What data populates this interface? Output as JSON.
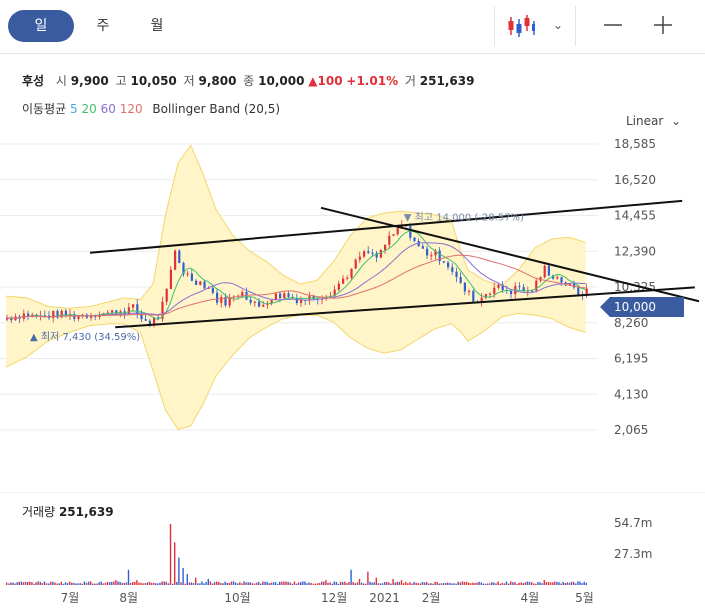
{
  "period_tabs": [
    {
      "label": "일",
      "active": true
    },
    {
      "label": "주",
      "active": false
    },
    {
      "label": "월",
      "active": false
    }
  ],
  "toolbar": {
    "chart_type_icon": "candlestick-icon",
    "dropdown_icon": "chevron-down-icon",
    "zoom_out_icon": "minus-icon",
    "zoom_in_icon": "plus-icon"
  },
  "quote": {
    "name": "후성",
    "open_label": "시",
    "open": "9,900",
    "high_label": "고",
    "high": "10,050",
    "low_label": "저",
    "low": "9,800",
    "close_label": "종",
    "close": "10,000",
    "change": "▲100",
    "change_pct": "+1.01%",
    "volume_label": "거",
    "volume": "251,639"
  },
  "indicators": {
    "ma_label": "이동평균",
    "ma_periods": [
      "5",
      "20",
      "60",
      "120"
    ],
    "bollinger_label": "Bollinger Band (20,5)"
  },
  "scale": {
    "label": "Linear"
  },
  "current_price_tag": "10,000",
  "annotations": {
    "high": "▼ 최고 14,000 (-28.57%)",
    "low": "▲ 최저 7,430 (34.59%)"
  },
  "volume_panel": {
    "title": "거래량",
    "value": "251,639",
    "ticks": [
      "54.7m",
      "27.3m"
    ]
  },
  "colors": {
    "up": "#e0303a",
    "down": "#3060d0",
    "band_fill": "#fff5c8",
    "band_line": "#f3d66a",
    "ma5": "#4aa8d8",
    "ma20": "#40c070",
    "ma60": "#8a6fd0",
    "ma120": "#e07070",
    "accent": "#3a5ba0"
  },
  "chart_data": {
    "type": "candlestick",
    "y_ticks": [
      18585,
      16520,
      14455,
      12390,
      10325,
      8260,
      6195,
      4130,
      2065
    ],
    "ylim": [
      2065,
      18585
    ],
    "x_ticks": [
      "7월",
      "8월",
      "10월",
      "12월",
      "2021",
      "2월",
      "4월",
      "5월"
    ],
    "price_path": [
      [
        0,
        8550
      ],
      [
        4,
        8650
      ],
      [
        8,
        8750
      ],
      [
        12,
        8650
      ],
      [
        16,
        8600
      ],
      [
        20,
        8700
      ],
      [
        24,
        8750
      ],
      [
        28,
        8700
      ],
      [
        32,
        8650
      ],
      [
        36,
        8700
      ],
      [
        40,
        8750
      ],
      [
        44,
        8850
      ],
      [
        48,
        8800
      ],
      [
        52,
        8900
      ],
      [
        56,
        9000
      ],
      [
        60,
        9100
      ],
      [
        64,
        8500
      ],
      [
        68,
        8300
      ],
      [
        72,
        8600
      ],
      [
        76,
        10000
      ],
      [
        80,
        12400
      ],
      [
        84,
        11200
      ],
      [
        88,
        10800
      ],
      [
        92,
        10600
      ],
      [
        96,
        10300
      ],
      [
        100,
        9600
      ],
      [
        104,
        9500
      ],
      [
        108,
        9700
      ],
      [
        112,
        10200
      ],
      [
        116,
        9400
      ],
      [
        120,
        9200
      ],
      [
        124,
        9600
      ],
      [
        128,
        9800
      ],
      [
        132,
        9900
      ],
      [
        136,
        9700
      ],
      [
        140,
        9600
      ],
      [
        144,
        9700
      ],
      [
        148,
        9800
      ],
      [
        152,
        9900
      ],
      [
        156,
        10200
      ],
      [
        160,
        10800
      ],
      [
        164,
        11300
      ],
      [
        168,
        12100
      ],
      [
        172,
        12300
      ],
      [
        176,
        12000
      ],
      [
        180,
        12800
      ],
      [
        184,
        13300
      ],
      [
        188,
        13900
      ],
      [
        192,
        13400
      ],
      [
        196,
        12600
      ],
      [
        200,
        12300
      ],
      [
        204,
        12200
      ],
      [
        208,
        11900
      ],
      [
        212,
        11300
      ],
      [
        216,
        10400
      ],
      [
        220,
        9900
      ],
      [
        224,
        9500
      ],
      [
        228,
        10000
      ],
      [
        232,
        10300
      ],
      [
        236,
        10200
      ],
      [
        240,
        10100
      ],
      [
        244,
        10300
      ],
      [
        248,
        10000
      ],
      [
        252,
        10500
      ],
      [
        256,
        11400
      ],
      [
        260,
        11000
      ],
      [
        264,
        10700
      ],
      [
        268,
        10300
      ],
      [
        272,
        10000
      ],
      [
        276,
        10000
      ]
    ],
    "volumes": [
      [
        16,
        0.05
      ],
      [
        40,
        0.06
      ],
      [
        52,
        0.08
      ],
      [
        58,
        0.25
      ],
      [
        62,
        0.08
      ],
      [
        78,
        1.0
      ],
      [
        80,
        0.7
      ],
      [
        82,
        0.45
      ],
      [
        84,
        0.28
      ],
      [
        86,
        0.18
      ],
      [
        90,
        0.12
      ],
      [
        96,
        0.1
      ],
      [
        108,
        0.06
      ],
      [
        120,
        0.05
      ],
      [
        152,
        0.08
      ],
      [
        164,
        0.25
      ],
      [
        168,
        0.1
      ],
      [
        172,
        0.22
      ],
      [
        176,
        0.12
      ],
      [
        184,
        0.1
      ],
      [
        188,
        0.08
      ],
      [
        200,
        0.05
      ],
      [
        220,
        0.04
      ],
      [
        240,
        0.06
      ],
      [
        256,
        0.08
      ],
      [
        262,
        0.05
      ],
      [
        272,
        0.06
      ]
    ],
    "bollinger_upper": [
      [
        0,
        9800
      ],
      [
        10,
        9700
      ],
      [
        20,
        9200
      ],
      [
        30,
        9100
      ],
      [
        40,
        9200
      ],
      [
        50,
        9500
      ],
      [
        56,
        9700
      ],
      [
        64,
        9600
      ],
      [
        70,
        10500
      ],
      [
        76,
        14500
      ],
      [
        82,
        17500
      ],
      [
        88,
        18500
      ],
      [
        94,
        16800
      ],
      [
        100,
        14800
      ],
      [
        108,
        13300
      ],
      [
        116,
        12400
      ],
      [
        124,
        11800
      ],
      [
        132,
        11000
      ],
      [
        140,
        10500
      ],
      [
        148,
        10700
      ],
      [
        156,
        11800
      ],
      [
        164,
        13300
      ],
      [
        172,
        14300
      ],
      [
        180,
        14600
      ],
      [
        188,
        14700
      ],
      [
        196,
        14600
      ],
      [
        204,
        14500
      ],
      [
        212,
        14200
      ],
      [
        216,
        12600
      ],
      [
        220,
        11300
      ],
      [
        228,
        10700
      ],
      [
        236,
        10400
      ],
      [
        244,
        11300
      ],
      [
        252,
        12600
      ],
      [
        260,
        13100
      ],
      [
        268,
        13200
      ],
      [
        276,
        12900
      ]
    ],
    "bollinger_lower": [
      [
        0,
        5700
      ],
      [
        10,
        6300
      ],
      [
        20,
        7200
      ],
      [
        30,
        7700
      ],
      [
        40,
        8100
      ],
      [
        50,
        8200
      ],
      [
        56,
        8200
      ],
      [
        64,
        7700
      ],
      [
        70,
        5500
      ],
      [
        76,
        3200
      ],
      [
        82,
        2100
      ],
      [
        88,
        2300
      ],
      [
        94,
        3600
      ],
      [
        100,
        5200
      ],
      [
        108,
        6400
      ],
      [
        116,
        7400
      ],
      [
        124,
        8000
      ],
      [
        132,
        8500
      ],
      [
        140,
        8700
      ],
      [
        148,
        8700
      ],
      [
        156,
        8300
      ],
      [
        164,
        7400
      ],
      [
        172,
        6800
      ],
      [
        180,
        6500
      ],
      [
        188,
        6700
      ],
      [
        196,
        7300
      ],
      [
        204,
        7900
      ],
      [
        212,
        8200
      ],
      [
        216,
        7800
      ],
      [
        220,
        7200
      ],
      [
        228,
        7800
      ],
      [
        236,
        8600
      ],
      [
        244,
        8800
      ],
      [
        252,
        8700
      ],
      [
        260,
        8500
      ],
      [
        268,
        8000
      ],
      [
        276,
        7700
      ]
    ],
    "trendlines": [
      [
        [
          40,
          12300
        ],
        [
          322,
          15300
        ]
      ],
      [
        [
          52,
          8000
        ],
        [
          328,
          10300
        ]
      ],
      [
        [
          150,
          14900
        ],
        [
          330,
          9500
        ]
      ]
    ]
  }
}
